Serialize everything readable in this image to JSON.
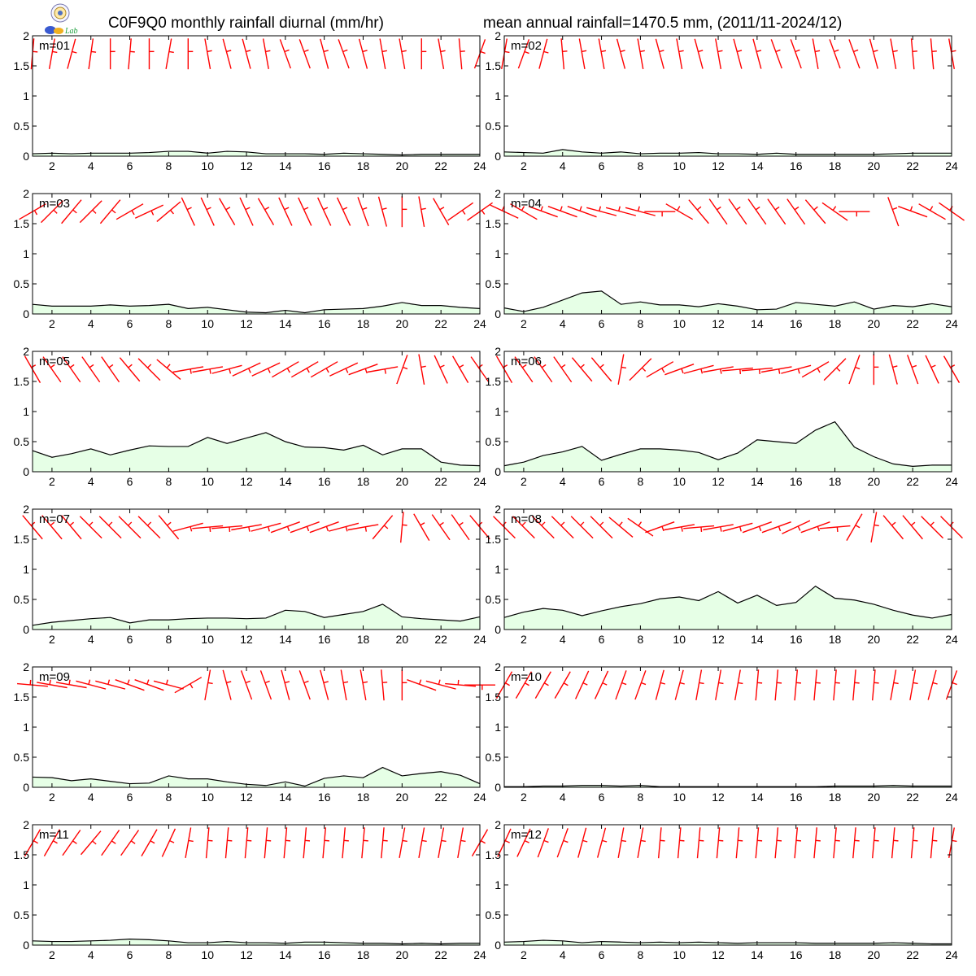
{
  "header": {
    "title_left": "C0F9Q0 monthly rainfall diurnal (mm/hr)",
    "title_right": "mean annual rainfall=1470.5 mm, (2011/11-2024/12)",
    "logo_text": "Lab"
  },
  "colors": {
    "fill": "#e6ffe6",
    "line": "#000000",
    "barb": "#ff0000"
  },
  "chart_data": {
    "type": "area",
    "x": [
      1,
      2,
      3,
      4,
      5,
      6,
      7,
      8,
      9,
      10,
      11,
      12,
      13,
      14,
      15,
      16,
      17,
      18,
      19,
      20,
      21,
      22,
      23,
      24
    ],
    "xlim": [
      1,
      24
    ],
    "ylim": [
      0,
      2
    ],
    "x_ticks": [
      2,
      4,
      6,
      8,
      10,
      12,
      14,
      16,
      18,
      20,
      22,
      24
    ],
    "y_ticks": [
      0,
      0.5,
      1,
      1.5,
      2
    ],
    "y_tick_labels": [
      "0",
      "0.5",
      "1",
      "1.5",
      "2"
    ],
    "panels": [
      {
        "label": "m=01",
        "values": [
          0.04,
          0.05,
          0.04,
          0.05,
          0.05,
          0.05,
          0.06,
          0.08,
          0.08,
          0.05,
          0.08,
          0.07,
          0.04,
          0.04,
          0.04,
          0.03,
          0.05,
          0.04,
          0.03,
          0.02,
          0.03,
          0.03,
          0.03,
          0.03
        ],
        "wind_dir": [
          5,
          10,
          15,
          8,
          0,
          5,
          0,
          10,
          0,
          -10,
          -15,
          -15,
          -10,
          -20,
          -20,
          -15,
          -20,
          -15,
          -10,
          -10,
          0,
          -10,
          -5,
          20
        ]
      },
      {
        "label": "m=02",
        "values": [
          0.07,
          0.06,
          0.05,
          0.11,
          0.07,
          0.05,
          0.07,
          0.04,
          0.05,
          0.05,
          0.06,
          0.04,
          0.04,
          0.03,
          0.05,
          0.03,
          0.03,
          0.03,
          0.03,
          0.03,
          0.04,
          0.05,
          0.05,
          0.05
        ],
        "wind_dir": [
          10,
          20,
          15,
          -5,
          -10,
          -10,
          -15,
          -10,
          -15,
          -10,
          -15,
          -10,
          -15,
          -15,
          -20,
          -20,
          -10,
          -20,
          -20,
          -15,
          -10,
          -5,
          -5,
          -10
        ]
      },
      {
        "label": "m=03",
        "values": [
          0.16,
          0.13,
          0.13,
          0.13,
          0.15,
          0.13,
          0.14,
          0.16,
          0.09,
          0.11,
          0.07,
          0.03,
          0.02,
          0.06,
          0.02,
          0.07,
          0.08,
          0.09,
          0.13,
          0.19,
          0.14,
          0.14,
          0.11,
          0.09
        ],
        "wind_dir": [
          60,
          45,
          40,
          45,
          40,
          60,
          65,
          50,
          -25,
          -25,
          -30,
          -25,
          -30,
          -25,
          -25,
          -25,
          -25,
          -20,
          -15,
          0,
          -10,
          -30,
          55,
          55
        ]
      },
      {
        "label": "m=04",
        "values": [
          0.1,
          0.04,
          0.11,
          0.23,
          0.35,
          0.38,
          0.16,
          0.2,
          0.15,
          0.15,
          0.12,
          0.17,
          0.13,
          0.07,
          0.08,
          0.19,
          0.16,
          0.13,
          0.2,
          0.08,
          0.14,
          0.12,
          0.17,
          0.12
        ],
        "wind_dir": [
          -65,
          -60,
          -70,
          -70,
          -70,
          -75,
          -75,
          -75,
          90,
          -60,
          -40,
          -35,
          -35,
          -35,
          -35,
          -35,
          -40,
          -55,
          90,
          null,
          -20,
          -70,
          -60,
          -55
        ]
      },
      {
        "label": "m=05",
        "values": [
          0.35,
          0.24,
          0.3,
          0.38,
          0.28,
          0.36,
          0.43,
          0.42,
          0.42,
          0.57,
          0.47,
          0.56,
          0.65,
          0.5,
          0.41,
          0.4,
          0.36,
          0.44,
          0.28,
          0.38,
          0.38,
          0.16,
          0.11,
          0.1
        ],
        "wind_dir": [
          -30,
          -35,
          -35,
          -35,
          -35,
          -40,
          -45,
          -50,
          80,
          80,
          75,
          65,
          65,
          60,
          60,
          60,
          65,
          70,
          80,
          20,
          -10,
          -25,
          -30,
          -35
        ]
      },
      {
        "label": "m=06",
        "values": [
          0.1,
          0.16,
          0.27,
          0.33,
          0.42,
          0.19,
          0.29,
          0.38,
          0.38,
          0.36,
          0.32,
          0.2,
          0.31,
          0.53,
          0.5,
          0.47,
          0.69,
          0.83,
          0.41,
          0.25,
          0.13,
          0.09,
          0.11,
          0.11
        ],
        "wind_dir": [
          -30,
          -35,
          -35,
          -35,
          -40,
          -40,
          10,
          45,
          60,
          70,
          75,
          80,
          85,
          85,
          80,
          75,
          60,
          45,
          20,
          0,
          -15,
          -20,
          -25,
          -30
        ]
      },
      {
        "label": "m=07",
        "values": [
          0.07,
          0.12,
          0.15,
          0.18,
          0.2,
          0.11,
          0.16,
          0.16,
          0.18,
          0.19,
          0.19,
          0.18,
          0.19,
          0.32,
          0.3,
          0.2,
          0.25,
          0.3,
          0.42,
          0.21,
          0.18,
          0.16,
          0.14,
          0.21
        ],
        "wind_dir": [
          -40,
          -40,
          -40,
          -45,
          -45,
          -45,
          -45,
          -40,
          75,
          85,
          85,
          80,
          75,
          70,
          70,
          70,
          75,
          80,
          40,
          5,
          -30,
          -35,
          -35,
          -40
        ]
      },
      {
        "label": "m=08",
        "values": [
          0.2,
          0.29,
          0.35,
          0.32,
          0.23,
          0.31,
          0.38,
          0.43,
          0.51,
          0.54,
          0.48,
          0.63,
          0.44,
          0.57,
          0.4,
          0.45,
          0.72,
          0.52,
          0.49,
          0.42,
          0.32,
          0.24,
          0.19,
          0.25
        ],
        "wind_dir": [
          -45,
          -45,
          -45,
          -45,
          -45,
          -45,
          -50,
          -55,
          70,
          80,
          85,
          80,
          75,
          70,
          70,
          65,
          70,
          85,
          30,
          10,
          -40,
          -40,
          -45,
          -45
        ]
      },
      {
        "label": "m=09",
        "values": [
          0.17,
          0.16,
          0.11,
          0.14,
          0.1,
          0.06,
          0.07,
          0.19,
          0.14,
          0.14,
          0.09,
          0.05,
          0.03,
          0.09,
          0.02,
          0.15,
          0.19,
          0.16,
          0.33,
          0.19,
          0.23,
          0.26,
          0.2,
          0.06
        ],
        "wind_dir": [
          -85,
          -80,
          -80,
          -75,
          -75,
          -70,
          -70,
          -75,
          60,
          10,
          -15,
          -20,
          -20,
          -15,
          -20,
          -15,
          -10,
          -10,
          -5,
          0,
          -70,
          -75,
          -85,
          90
        ]
      },
      {
        "label": "m=10",
        "values": [
          0.01,
          0.01,
          0.02,
          0.02,
          0.03,
          0.03,
          0.02,
          0.03,
          0.01,
          0.01,
          0.01,
          0.01,
          0.01,
          0.01,
          0.01,
          0.01,
          0.01,
          0.02,
          0.02,
          0.02,
          0.03,
          0.02,
          0.02,
          0.02
        ],
        "wind_dir": [
          30,
          30,
          30,
          30,
          25,
          25,
          20,
          20,
          15,
          15,
          10,
          10,
          10,
          5,
          5,
          5,
          5,
          5,
          5,
          5,
          10,
          10,
          15,
          20
        ]
      },
      {
        "label": "m=11",
        "values": [
          0.07,
          0.06,
          0.06,
          0.07,
          0.08,
          0.1,
          0.09,
          0.07,
          0.04,
          0.04,
          0.06,
          0.04,
          0.04,
          0.03,
          0.05,
          0.05,
          0.04,
          0.03,
          0.03,
          0.02,
          0.03,
          0.02,
          0.03,
          0.03
        ],
        "wind_dir": [
          30,
          30,
          35,
          40,
          35,
          35,
          30,
          25,
          10,
          5,
          5,
          5,
          5,
          5,
          5,
          5,
          5,
          5,
          5,
          10,
          10,
          10,
          10,
          30
        ]
      },
      {
        "label": "m=12",
        "values": [
          0.05,
          0.06,
          0.08,
          0.07,
          0.04,
          0.06,
          0.05,
          0.04,
          0.05,
          0.04,
          0.05,
          0.04,
          0.03,
          0.04,
          0.04,
          0.04,
          0.03,
          0.03,
          0.03,
          0.03,
          0.04,
          0.03,
          0.02,
          0.02
        ],
        "wind_dir": [
          25,
          25,
          20,
          20,
          15,
          15,
          10,
          10,
          5,
          5,
          5,
          5,
          5,
          5,
          5,
          5,
          5,
          5,
          5,
          5,
          5,
          5,
          5,
          10
        ]
      }
    ]
  }
}
